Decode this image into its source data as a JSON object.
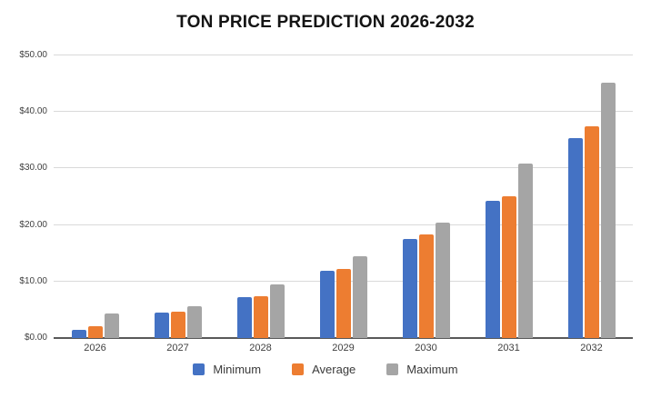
{
  "title": "TON PRICE PREDICTION 2026-2032",
  "colors": {
    "minimum": "#4472C4",
    "average": "#ED7D31",
    "maximum": "#A5A5A5",
    "gridline": "#D9D9D9",
    "axis_line": "#595959",
    "tick_text": "#3F3F3F"
  },
  "chart_data": {
    "type": "bar",
    "title": "TON PRICE PREDICTION 2026-2032",
    "categories": [
      "2026",
      "2027",
      "2028",
      "2029",
      "2030",
      "2031",
      "2032"
    ],
    "series": [
      {
        "name": "Minimum",
        "color": "#4472C4",
        "values": [
          1.5,
          4.5,
          7.2,
          11.9,
          17.6,
          24.3,
          35.3
        ]
      },
      {
        "name": "Average",
        "color": "#ED7D31",
        "values": [
          2.1,
          4.7,
          7.4,
          12.2,
          18.3,
          25.1,
          37.5
        ]
      },
      {
        "name": "Maximum",
        "color": "#A5A5A5",
        "values": [
          4.3,
          5.6,
          9.5,
          14.4,
          20.4,
          30.9,
          45.2
        ]
      }
    ],
    "xlabel": "",
    "ylabel": "",
    "ylim": [
      0,
      50
    ],
    "yticks": [
      0,
      10,
      20,
      30,
      40,
      50
    ],
    "ytick_labels": [
      "$0.00",
      "$10.00",
      "$20.00",
      "$30.00",
      "$40.00",
      "$50.00"
    ],
    "grid": true,
    "legend_position": "bottom"
  }
}
